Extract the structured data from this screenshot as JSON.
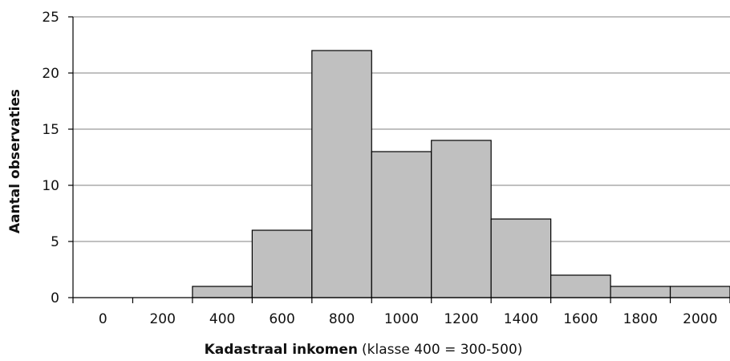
{
  "chart_data": {
    "type": "bar",
    "categories": [
      "0",
      "200",
      "400",
      "600",
      "800",
      "1000",
      "1200",
      "1400",
      "1600",
      "1800",
      "2000"
    ],
    "values": [
      0,
      0,
      1,
      6,
      22,
      13,
      14,
      7,
      2,
      1,
      1
    ],
    "ylabel": "Aantal observaties",
    "xlabel_bold": "Kadastraal inkomen",
    "xlabel_rest": "(klasse 400 = 300-500)",
    "ylim": [
      0,
      25
    ],
    "yticks": [
      0,
      5,
      10,
      15,
      20,
      25
    ],
    "grid": true,
    "bar_fill": "#c0c0c0",
    "bar_stroke": "#000000",
    "grid_color": "#808080"
  }
}
